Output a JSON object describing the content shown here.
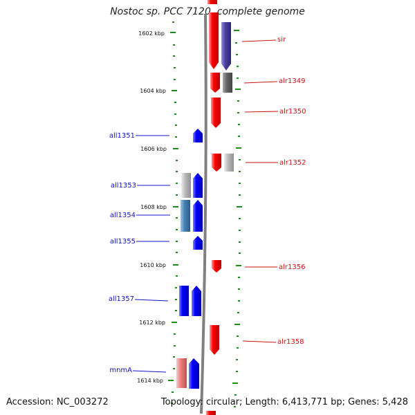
{
  "title": "Nostoc sp. PCC 7120, complete genome",
  "accession": "Accession: NC_003272",
  "info": "Topology: circular; Length: 6,413,771 bp; Genes: 5,428",
  "colors": {
    "backbone": "#808080",
    "tick": "#1a8c1a",
    "left_label": "#1111cc",
    "right_label": "#cc1111"
  },
  "kbp_labels": [
    "1602 kbp",
    "1604 kbp",
    "1606 kbp",
    "1608 kbp",
    "1610 kbp",
    "1612 kbp",
    "1614 kbp"
  ],
  "left_genes": [
    "all1351",
    "all1353",
    "all1354",
    "all1355",
    "all1357",
    "mnmA"
  ],
  "right_genes": [
    "sir",
    "alr1349",
    "alr1350",
    "alr1352",
    "alr1356",
    "alr1358"
  ]
}
